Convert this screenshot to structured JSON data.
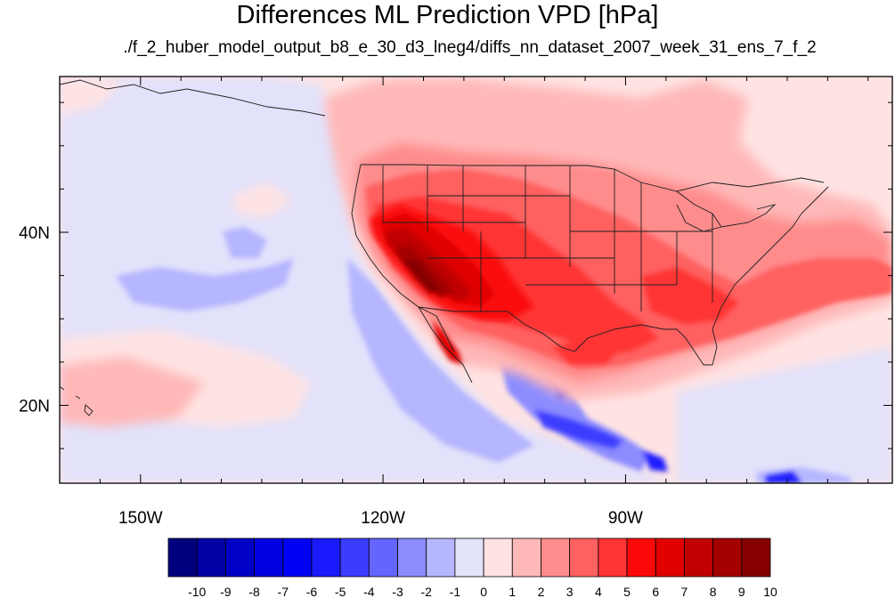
{
  "title": "Differences ML Prediction VPD [hPa]",
  "subtitle": "./f_2_huber_model_output_b8_e_30_d3_lneg4/diffs_nn_dataset_2007_week_31_ens_7_f_2",
  "map": {
    "lon_range": [
      -160,
      -57
    ],
    "lat_range": [
      11,
      58
    ],
    "lon_ticks": [
      {
        "value": -150,
        "label": "150W"
      },
      {
        "value": -120,
        "label": "120W"
      },
      {
        "value": -90,
        "label": "90W"
      }
    ],
    "lat_ticks": [
      {
        "value": 40,
        "label": "40N"
      },
      {
        "value": 20,
        "label": "20N"
      }
    ],
    "background_level": 0.5
  },
  "colorbar": {
    "labels": [
      "-10",
      "-9",
      "-8",
      "-7",
      "-6",
      "-5",
      "-4",
      "-3",
      "-2",
      "-1",
      "0",
      "1",
      "2",
      "3",
      "4",
      "5",
      "6",
      "7",
      "8",
      "9",
      "10"
    ],
    "colors": [
      "#00007e",
      "#0000a3",
      "#0000c7",
      "#0000e0",
      "#0000f4",
      "#1a1aff",
      "#3c3cff",
      "#6464ff",
      "#8c8cff",
      "#b6b6ff",
      "#e2e2fb",
      "#ffe3e3",
      "#ffb8b8",
      "#ff8c8c",
      "#ff6060",
      "#ff3434",
      "#fb0808",
      "#e00000",
      "#c00000",
      "#a30000",
      "#860000"
    ]
  },
  "colors": {
    "land_border": "#1e1e1e",
    "frame": "#000000"
  }
}
